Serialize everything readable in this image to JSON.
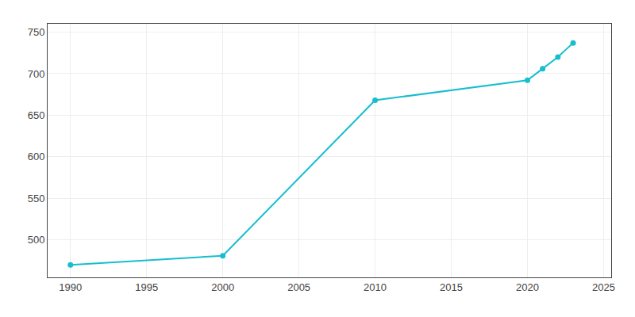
{
  "chart_data": {
    "type": "line",
    "x": [
      1990,
      2000,
      2010,
      2020,
      2021,
      2022,
      2023
    ],
    "values": [
      470,
      481,
      668,
      692,
      706,
      720,
      737
    ],
    "color": "#17becf",
    "marker": "circle",
    "xlim": [
      1988.5,
      2025.5
    ],
    "ylim": [
      455,
      760
    ],
    "xticks": [
      1990,
      1995,
      2000,
      2005,
      2010,
      2015,
      2020,
      2025
    ],
    "yticks": [
      500,
      550,
      600,
      650,
      700,
      750
    ],
    "grid": true
  }
}
